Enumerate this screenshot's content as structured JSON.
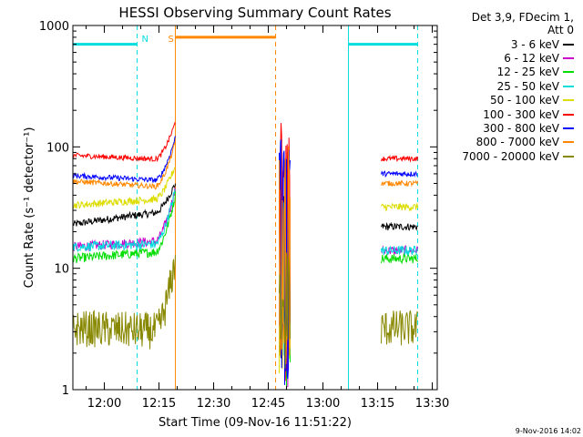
{
  "chart_data": {
    "type": "line",
    "title": "HESSI Observing Summary Count Rates",
    "xlabel": "Start Time (09-Nov-16 11:51:22)",
    "ylabel": "Count Rate (s⁻¹ detector⁻¹)",
    "y_scale": "log",
    "ylim": [
      1,
      1000
    ],
    "xlim": [
      "11:51:22",
      "13:31:22"
    ],
    "x_ticks": [
      "12:00",
      "12:15",
      "12:30",
      "12:45",
      "13:00",
      "13:15",
      "13:30"
    ],
    "y_ticks": [
      "1",
      "10",
      "100",
      "1000"
    ],
    "grid": false,
    "legend_position": "outside-right",
    "legend_title": [
      "Det 3,9, FDecim 1,",
      "Att 0"
    ],
    "series": [
      {
        "name": "3 - 6 keV",
        "color": "#000000",
        "level_start": 23,
        "level_end": 30,
        "level_late": 22,
        "noise": 0.07,
        "peak": 50
      },
      {
        "name": "6 - 12 keV",
        "color": "#cc00cc",
        "level_start": 15,
        "level_end": 17,
        "level_late": 14,
        "noise": 0.09,
        "peak": 45
      },
      {
        "name": "12 - 25 keV",
        "color": "#00dd00",
        "level_start": 12,
        "level_end": 14,
        "level_late": 12,
        "noise": 0.09,
        "peak": 40
      },
      {
        "name": "25 - 50 keV",
        "color": "#00dddd",
        "level_start": 15,
        "level_end": 16,
        "level_late": 14,
        "noise": 0.09,
        "peak": 45
      },
      {
        "name": "50 - 100 keV",
        "color": "#dddd00",
        "level_start": 33,
        "level_end": 38,
        "level_late": 32,
        "noise": 0.07,
        "peak": 70
      },
      {
        "name": "100 - 300 keV",
        "color": "#ff0000",
        "level_start": 85,
        "level_end": 78,
        "level_late": 80,
        "noise": 0.05,
        "peak": 160
      },
      {
        "name": "300 - 800 keV",
        "color": "#0000ff",
        "level_start": 58,
        "level_end": 52,
        "level_late": 60,
        "noise": 0.05,
        "peak": 120
      },
      {
        "name": "800 - 7000 keV",
        "color": "#ff8800",
        "level_start": 52,
        "level_end": 46,
        "level_late": 50,
        "noise": 0.05,
        "peak": 110
      },
      {
        "name": "7000 - 20000 keV",
        "color": "#888800",
        "level_start": 3.2,
        "level_end": 3.0,
        "level_late": 3.2,
        "noise": 0.35,
        "peak": 12
      }
    ],
    "data_segments": [
      {
        "start": "11:51:22",
        "end": "12:19:30"
      },
      {
        "start": "12:48:00",
        "end": "12:51:00"
      },
      {
        "start": "13:16:00",
        "end": "13:26:00"
      }
    ],
    "flags": [
      {
        "label": "",
        "color": "#00dddd",
        "start": "11:51:22",
        "end": "12:09:00",
        "y": 700
      },
      {
        "label": "N",
        "color": "#00dddd",
        "at": "12:09:00"
      },
      {
        "label": "S",
        "color": "#ff8800",
        "start": "12:19:30",
        "end": "12:47:00",
        "y": 800
      },
      {
        "label": "",
        "color": "#00dddd",
        "start": "13:07:00",
        "end": "13:26:00",
        "y": 700
      }
    ],
    "vertical_markers": [
      {
        "time": "11:51:22",
        "color": "#00dddd",
        "style": "solid"
      },
      {
        "time": "12:09:00",
        "color": "#00dddd",
        "style": "dashed"
      },
      {
        "time": "12:19:30",
        "color": "#ff8800",
        "style": "solid"
      },
      {
        "time": "12:47:00",
        "color": "#ff8800",
        "style": "dashed"
      },
      {
        "time": "13:07:00",
        "color": "#00dddd",
        "style": "solid"
      },
      {
        "time": "13:26:00",
        "color": "#00dddd",
        "style": "dashed"
      }
    ]
  },
  "timestamp": "9-Nov-2016 14:02"
}
